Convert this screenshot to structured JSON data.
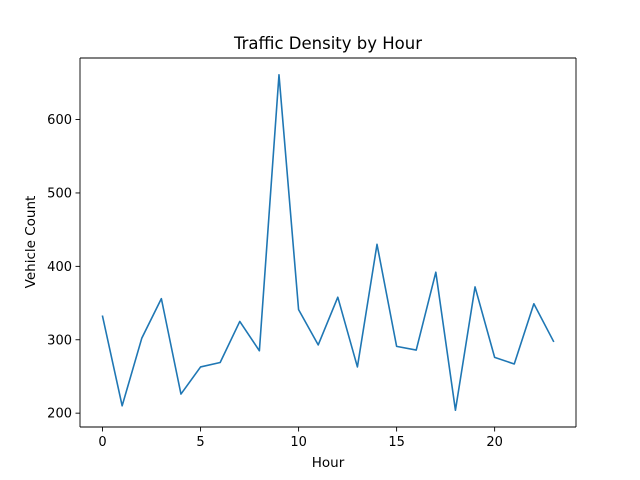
{
  "chart_data": {
    "type": "line",
    "title": "Traffic Density by Hour",
    "xlabel": "Hour",
    "ylabel": "Vehicle Count",
    "x": [
      0,
      1,
      2,
      3,
      4,
      5,
      6,
      7,
      8,
      9,
      10,
      11,
      12,
      13,
      14,
      15,
      16,
      17,
      18,
      19,
      20,
      21,
      22,
      23
    ],
    "series": [
      {
        "values": [
          332,
          210,
          302,
          356,
          226,
          263,
          269,
          325,
          285,
          661,
          341,
          293,
          358,
          263,
          430,
          291,
          286,
          392,
          204,
          372,
          276,
          267,
          349,
          298
        ],
        "color": "#1f77b4"
      }
    ],
    "xlim": [
      -1.15,
      24.15
    ],
    "ylim": [
      181.15,
      683.85
    ],
    "xticks": [
      0,
      5,
      10,
      15,
      20
    ],
    "yticks": [
      200,
      300,
      400,
      500,
      600
    ],
    "grid": false,
    "legend": false
  }
}
